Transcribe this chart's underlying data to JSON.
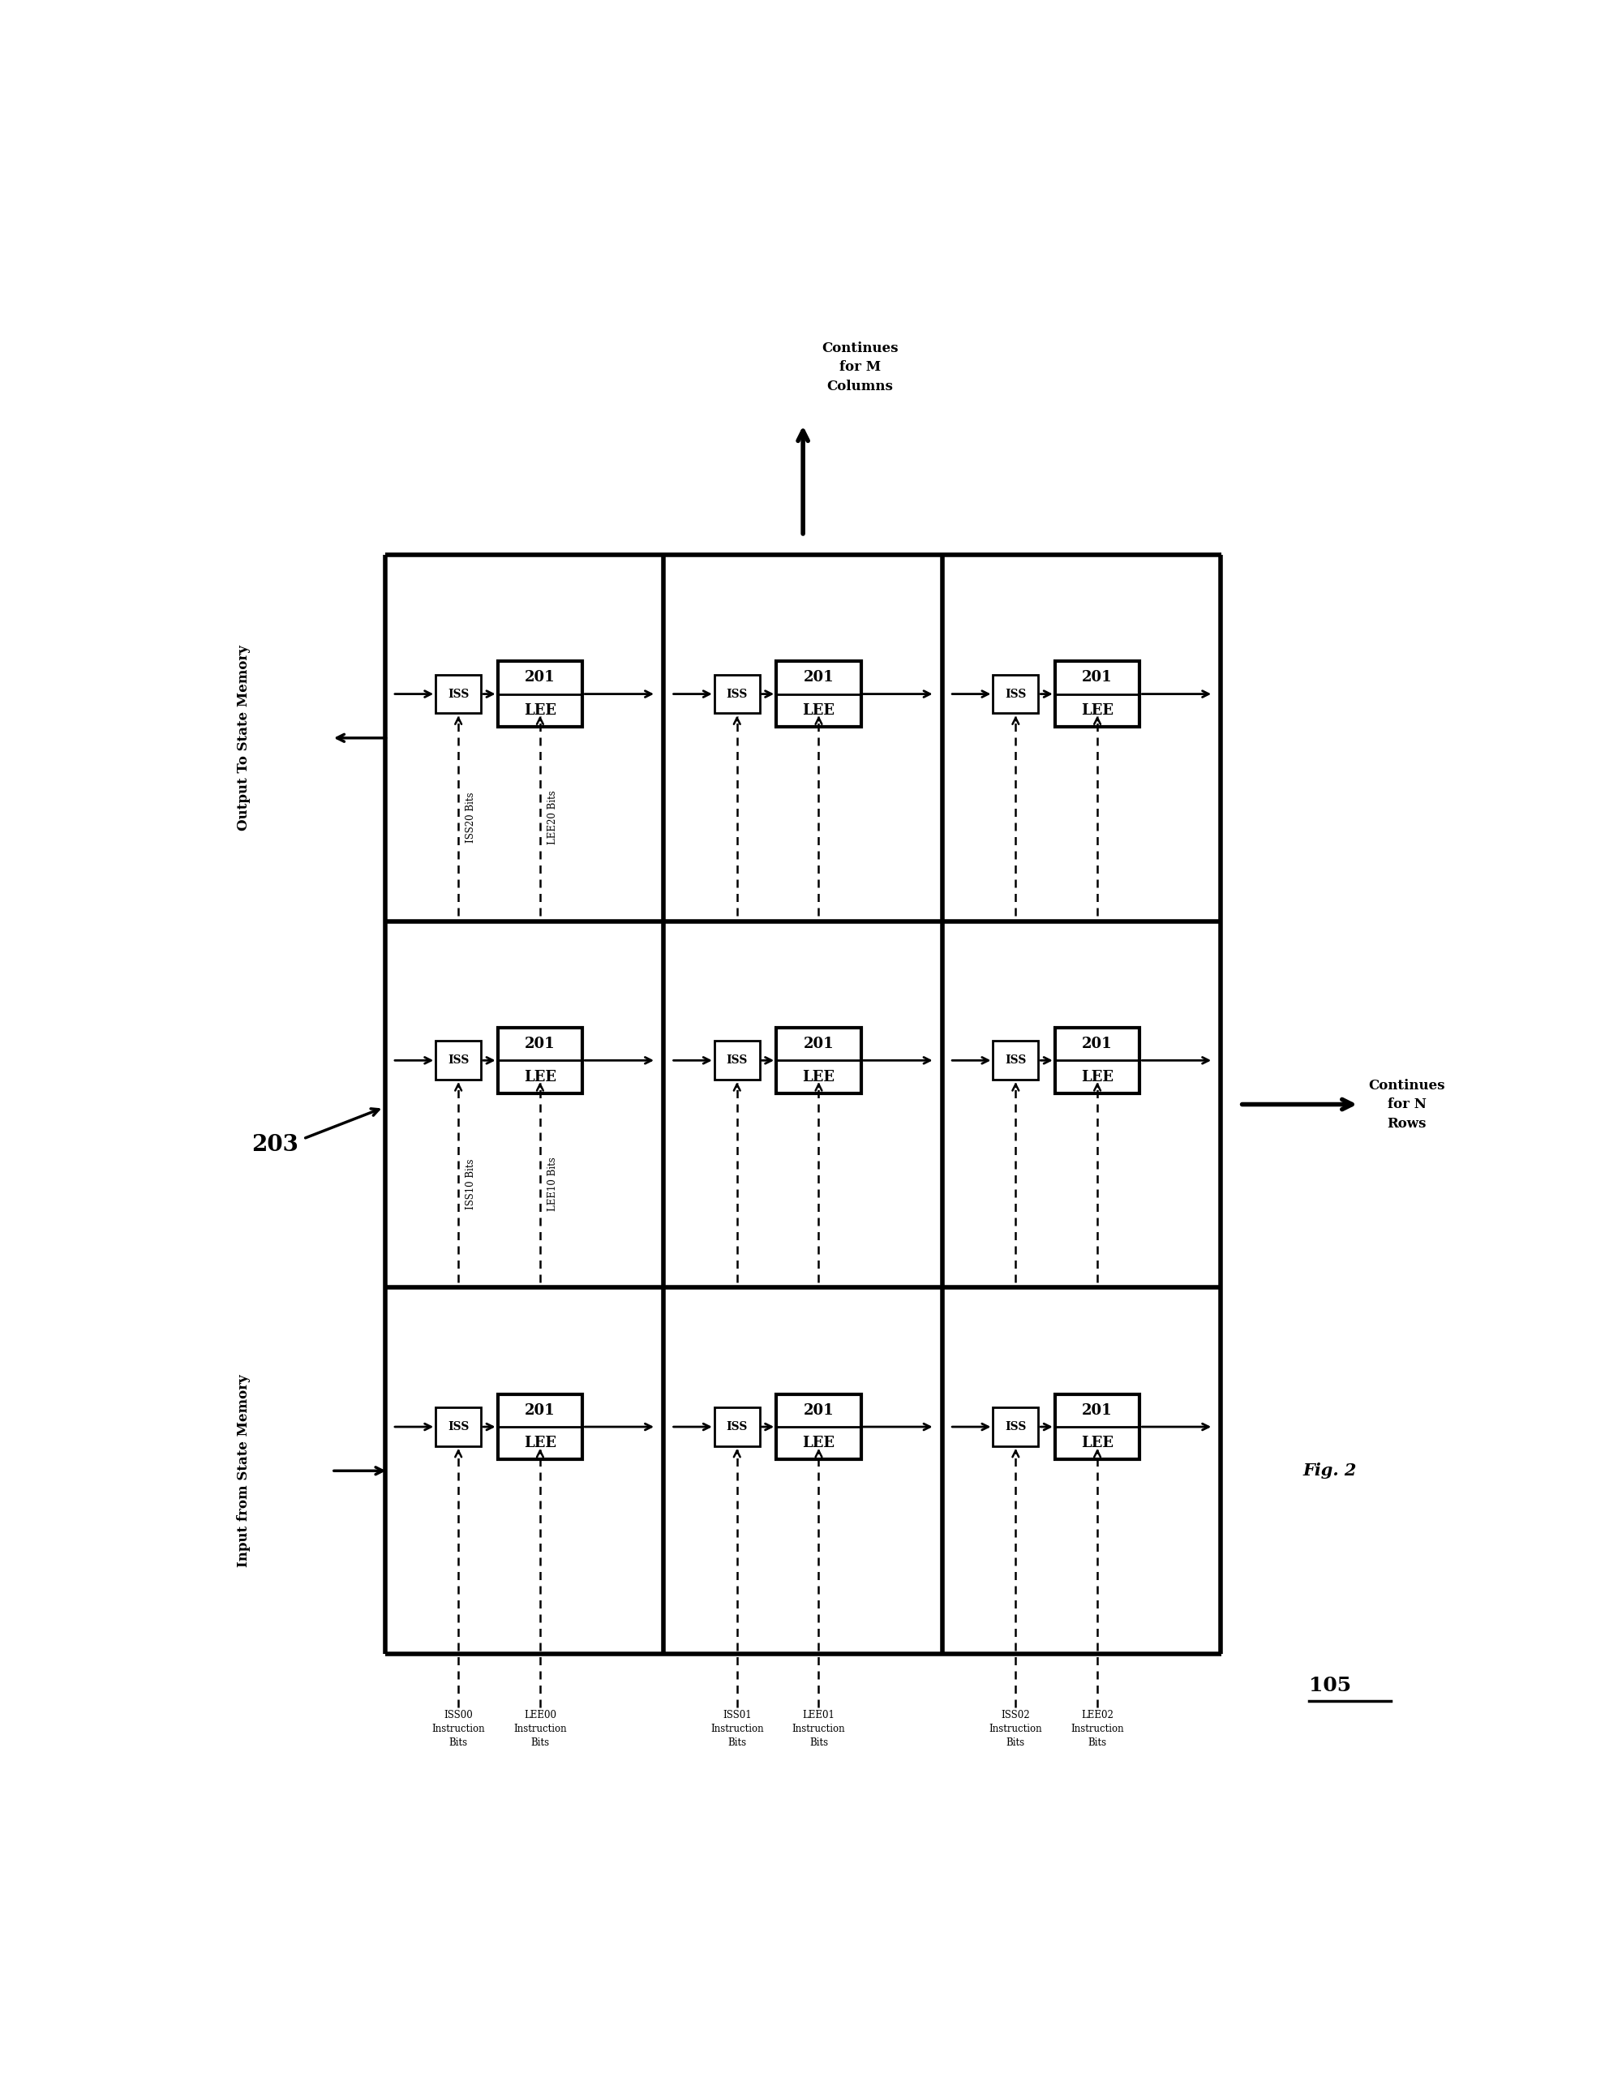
{
  "fig_width": 20.0,
  "fig_height": 25.68,
  "bg_color": "#ffffff",
  "title": "Fig. 2",
  "label_105": "105",
  "label_203": "203",
  "col_label": "Continues\nfor M\nColumns",
  "row_label": "Continues\nfor N\nRows",
  "input_label": "Input from State Memory",
  "output_label": "Output To State Memory",
  "row0_labels": [
    "ISS00\nInstruction\nBits",
    "LEE00\nInstruction\nBits",
    "ISS01\nInstruction\nBits",
    "LEE01\nInstruction\nBits",
    "ISS02\nInstruction\nBits",
    "LEE02\nInstruction\nBits"
  ],
  "row1_iss_label": "ISS10 Bits",
  "row1_lee_label": "LEE10 Bits",
  "row2_iss_label": "ISS20 Bits",
  "row2_lee_label": "LEE20 Bits",
  "grid_lw": 4.0,
  "iss_lw": 2.0,
  "lee_lw": 3.0
}
